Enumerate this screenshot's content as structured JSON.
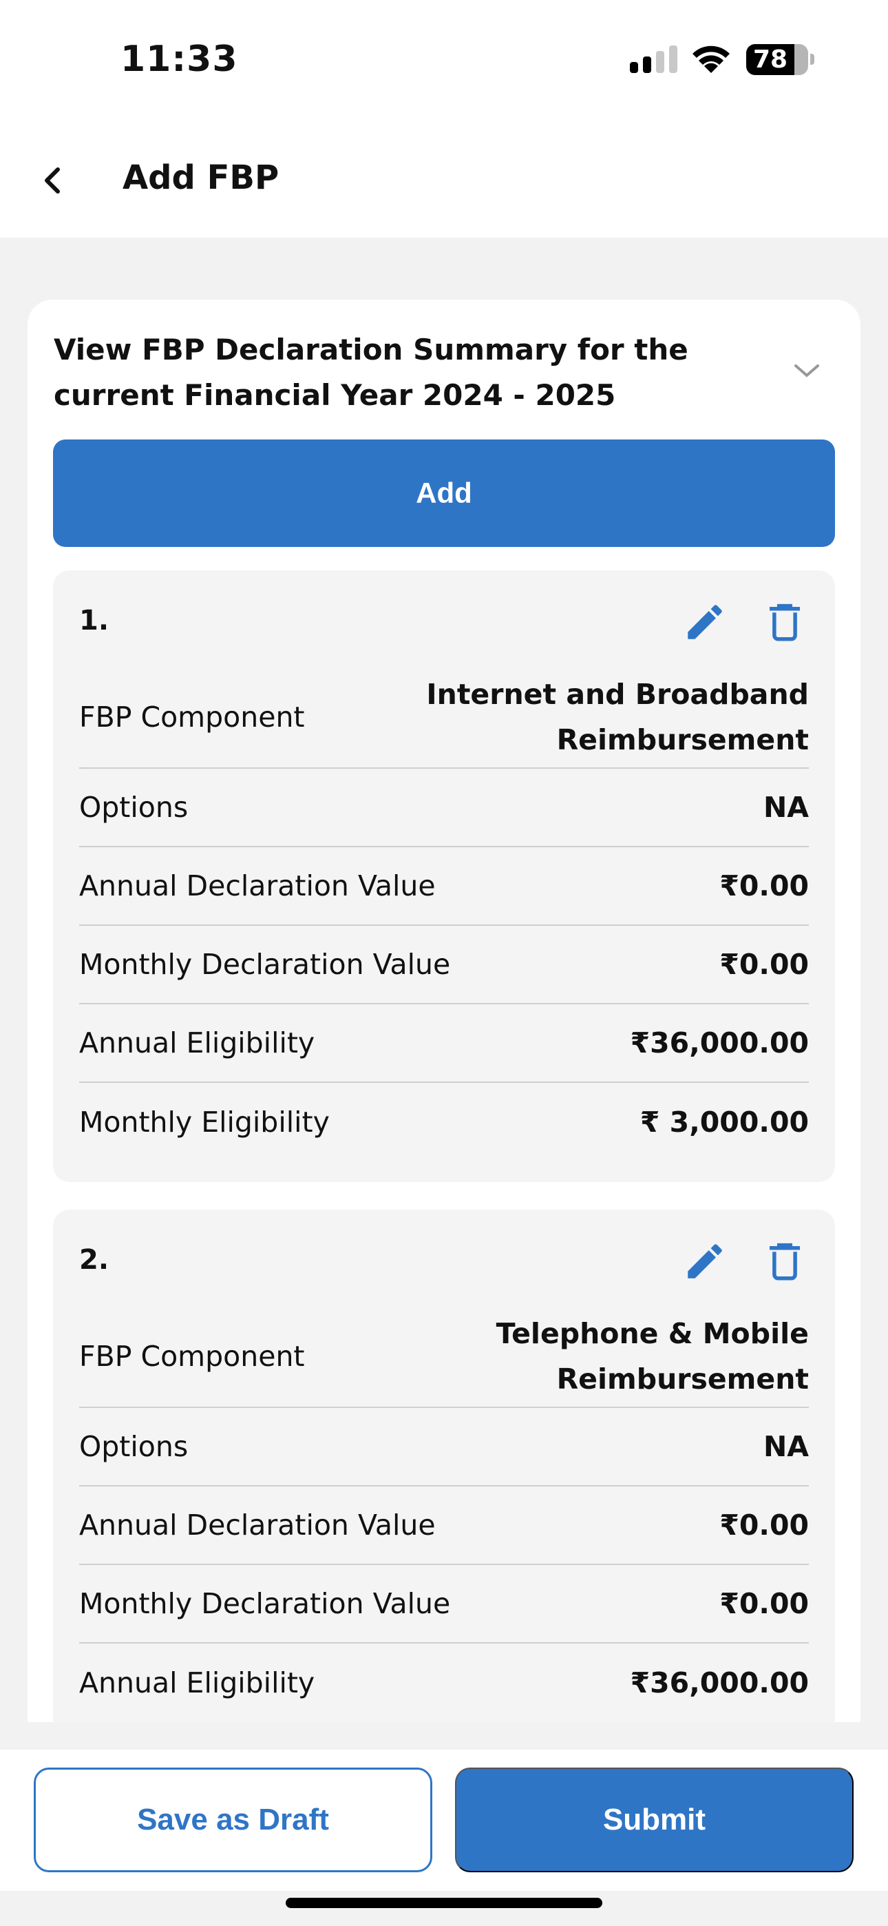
{
  "status_bar": {
    "time": "11:33",
    "battery": "78",
    "battery_level": 0.78,
    "signal_bars": 2
  },
  "header": {
    "title": "Add FBP"
  },
  "summary": {
    "title": "View FBP Declaration Summary for the current Financial Year 2024 - 2025",
    "add_label": "Add"
  },
  "colors": {
    "accent": "#2f75c6"
  },
  "items": [
    {
      "number": "1.",
      "rows": [
        {
          "label": "FBP Component",
          "value": "Internet and Broadband Reimbursement"
        },
        {
          "label": "Options",
          "value": "NA"
        },
        {
          "label": "Annual Declaration Value",
          "value": "₹0.00"
        },
        {
          "label": "Monthly Declaration Value",
          "value": "₹0.00"
        },
        {
          "label": "Annual Eligibility",
          "value": "₹36,000.00"
        },
        {
          "label": "Monthly Eligibility",
          "value": "₹ 3,000.00"
        }
      ]
    },
    {
      "number": "2.",
      "rows": [
        {
          "label": "FBP Component",
          "value": "Telephone & Mobile Reimbursement"
        },
        {
          "label": "Options",
          "value": "NA"
        },
        {
          "label": "Annual Declaration Value",
          "value": "₹0.00"
        },
        {
          "label": "Monthly Declaration Value",
          "value": "₹0.00"
        },
        {
          "label": "Annual Eligibility",
          "value": "₹36,000.00"
        }
      ]
    }
  ],
  "footer": {
    "save_draft": "Save as Draft",
    "submit": "Submit"
  }
}
